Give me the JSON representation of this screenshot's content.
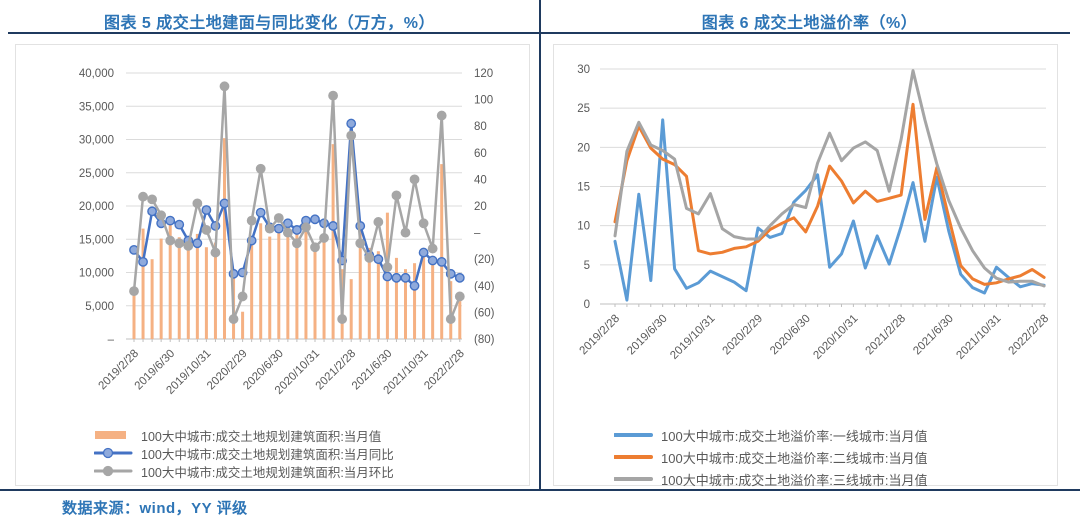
{
  "page": {
    "footer_source": "数据来源：wind，YY 评级"
  },
  "palette": {
    "grid": "#DBDBDB",
    "axis_line": "#BFBFBF",
    "axis_text": "#595959",
    "legend_text": "#595959",
    "title_blue": "#2E75B6",
    "rule_navy": "#1F3A5F",
    "box_border": "#E2E2E2",
    "bar_orange": "#F5B183",
    "line_blue_dark": "#4472C4",
    "line_blue_light": "#5B9BD5",
    "line_orange": "#ED7D31",
    "line_gray": "#A5A5A5"
  },
  "chart_data": [
    {
      "type": "bar",
      "title": "图表 5 成交土地建面与同比变化（万方，%）",
      "x": [
        "2019/2/28",
        "2019/3/31",
        "2019/4/30",
        "2019/5/31",
        "2019/6/30",
        "2019/7/31",
        "2019/8/31",
        "2019/9/30",
        "2019/10/31",
        "2019/11/30",
        "2019/12/31",
        "2020/1/31",
        "2020/2/29",
        "2020/3/31",
        "2020/4/30",
        "2020/5/31",
        "2020/6/30",
        "2020/7/31",
        "2020/8/31",
        "2020/9/30",
        "2020/10/31",
        "2020/11/30",
        "2020/12/31",
        "2021/1/31",
        "2021/2/28",
        "2021/3/31",
        "2021/4/30",
        "2021/5/31",
        "2021/6/30",
        "2021/7/31",
        "2021/8/31",
        "2021/9/30",
        "2021/10/31",
        "2021/11/30",
        "2021/12/31",
        "2022/1/31",
        "2022/2/28"
      ],
      "x_tick_indices": [
        0,
        4,
        8,
        12,
        16,
        20,
        24,
        28,
        32,
        36
      ],
      "x_tick_labels": [
        "2019/2/28",
        "2019/6/30",
        "2019/10/31",
        "2020/2/29",
        "2020/6/30",
        "2020/10/31",
        "2021/2/28",
        "2021/6/30",
        "2021/10/31",
        "2022/2/28"
      ],
      "left_axis": {
        "min": 0,
        "max": 40000,
        "step": 5000,
        "labels_top_to_bottom": [
          "40,000",
          "35,000",
          "30,000",
          "25,000",
          "20,000",
          "15,000",
          "10,000",
          "5,000",
          "–"
        ]
      },
      "right_axis": {
        "min": -80,
        "max": 120,
        "step": 20,
        "labels_top_to_bottom": [
          "120",
          "100",
          "80",
          "60",
          "40",
          "20",
          "–",
          "(20)",
          "(40)",
          "(60)",
          "(80)"
        ]
      },
      "series": [
        {
          "name": "100大中城市:成交土地规划建筑面积:当月值",
          "kind": "bar",
          "axis": "left",
          "color": "#F5B183",
          "values": [
            7000,
            16600,
            12000,
            15100,
            17400,
            15300,
            15200,
            15800,
            13800,
            14500,
            30200,
            10400,
            4100,
            15100,
            17400,
            15400,
            17300,
            16200,
            16000,
            16700,
            14000,
            14800,
            29300,
            10500,
            9000,
            16500,
            13700,
            13200,
            19000,
            12200,
            10500,
            11400,
            13700,
            12500,
            26300,
            8700,
            5700
          ]
        },
        {
          "name": "100大中城市:成交土地规划建筑面积:当月同比",
          "kind": "line",
          "axis": "right",
          "color": "#4472C4",
          "marker_fill": "#8FAADC",
          "values": [
            -13,
            -22,
            16,
            7,
            9,
            6,
            -6,
            -8,
            17,
            5,
            22,
            -31,
            -30,
            -6,
            15,
            4,
            3,
            7,
            2,
            9,
            10,
            7,
            5,
            -21,
            82,
            5,
            -17,
            -20,
            -33,
            -34,
            -34,
            -40,
            -15,
            -21,
            -22,
            -31,
            -34
          ]
        },
        {
          "name": "100大中城市:成交土地规划建筑面积:当月环比",
          "kind": "line",
          "axis": "right",
          "color": "#A6A6A6",
          "marker_fill": "#A6A6A6",
          "values": [
            -44,
            27,
            25,
            13,
            -6,
            -8,
            -10,
            22,
            2,
            -15,
            110,
            -65,
            -48,
            9,
            48,
            3,
            11,
            0,
            -8,
            4,
            -11,
            -4,
            103,
            -65,
            73,
            -8,
            -19,
            8,
            -26,
            28,
            0,
            40,
            7,
            -12,
            88,
            -65,
            -48
          ]
        }
      ]
    },
    {
      "type": "line",
      "title": "图表 6 成交土地溢价率（%）",
      "x": [
        "2019/2/28",
        "2019/3/31",
        "2019/4/30",
        "2019/5/31",
        "2019/6/30",
        "2019/7/31",
        "2019/8/31",
        "2019/9/30",
        "2019/10/31",
        "2019/11/30",
        "2019/12/31",
        "2020/1/31",
        "2020/2/29",
        "2020/3/31",
        "2020/4/30",
        "2020/5/31",
        "2020/6/30",
        "2020/7/31",
        "2020/8/31",
        "2020/9/30",
        "2020/10/31",
        "2020/11/30",
        "2020/12/31",
        "2021/1/31",
        "2021/2/28",
        "2021/3/31",
        "2021/4/30",
        "2021/5/31",
        "2021/6/30",
        "2021/7/31",
        "2021/8/31",
        "2021/9/30",
        "2021/10/31",
        "2021/11/30",
        "2021/12/31",
        "2022/1/31",
        "2022/2/28"
      ],
      "x_tick_indices": [
        0,
        4,
        8,
        12,
        16,
        20,
        24,
        28,
        32,
        36
      ],
      "x_tick_labels": [
        "2019/2/28",
        "2019/6/30",
        "2019/10/31",
        "2020/2/29",
        "2020/6/30",
        "2020/10/31",
        "2021/2/28",
        "2021/6/30",
        "2021/10/31",
        "2022/2/28"
      ],
      "left_axis": {
        "min": 0,
        "max": 30,
        "step": 5,
        "labels_top_to_bottom": [
          "30",
          "25",
          "20",
          "15",
          "10",
          "5",
          "0"
        ]
      },
      "series": [
        {
          "name": "100大中城市:成交土地溢价率:一线城市:当月值",
          "kind": "line",
          "axis": "left",
          "color": "#5B9BD5",
          "values": [
            8,
            0.5,
            14,
            3,
            23.5,
            4.5,
            2,
            2.7,
            4.2,
            3.5,
            2.8,
            1.7,
            9.7,
            8.5,
            9,
            13,
            14.5,
            16.5,
            4.7,
            6.4,
            10.6,
            4.6,
            8.7,
            5.1,
            9.9,
            15.5,
            8,
            16.2,
            9.3,
            3.8,
            2.1,
            1.4,
            4.7,
            3.4,
            2.2,
            2.6,
            2.4
          ]
        },
        {
          "name": "100大中城市:成交土地溢价率:二线城市:当月值",
          "kind": "line",
          "axis": "left",
          "color": "#ED7D31",
          "values": [
            10.5,
            18.3,
            22.7,
            19.9,
            18.5,
            17.8,
            16.3,
            6.8,
            6.4,
            6.6,
            7.1,
            7.3,
            8,
            9.5,
            10.3,
            11,
            9.2,
            12.5,
            17.6,
            15.7,
            12.9,
            14.4,
            13.1,
            13.5,
            13.9,
            25.5,
            10.8,
            17.4,
            11,
            4.9,
            3.2,
            2.5,
            2.7,
            3.2,
            3.6,
            4.4,
            3.4
          ]
        },
        {
          "name": "100大中城市:成交土地溢价率:三线城市:当月值",
          "kind": "line",
          "axis": "left",
          "color": "#A5A5A5",
          "values": [
            8.7,
            19.5,
            23.2,
            20.3,
            19.6,
            18.5,
            12.2,
            11.5,
            14.1,
            9.6,
            8.6,
            8.3,
            8.3,
            10,
            11.5,
            12.7,
            12.3,
            18,
            21.8,
            18.3,
            19.9,
            20.7,
            19.6,
            14.4,
            21,
            29.8,
            23.5,
            17.9,
            13.2,
            9.7,
            6.8,
            4.6,
            3.3,
            2.8,
            2.9,
            2.9,
            2.3
          ]
        }
      ]
    }
  ]
}
